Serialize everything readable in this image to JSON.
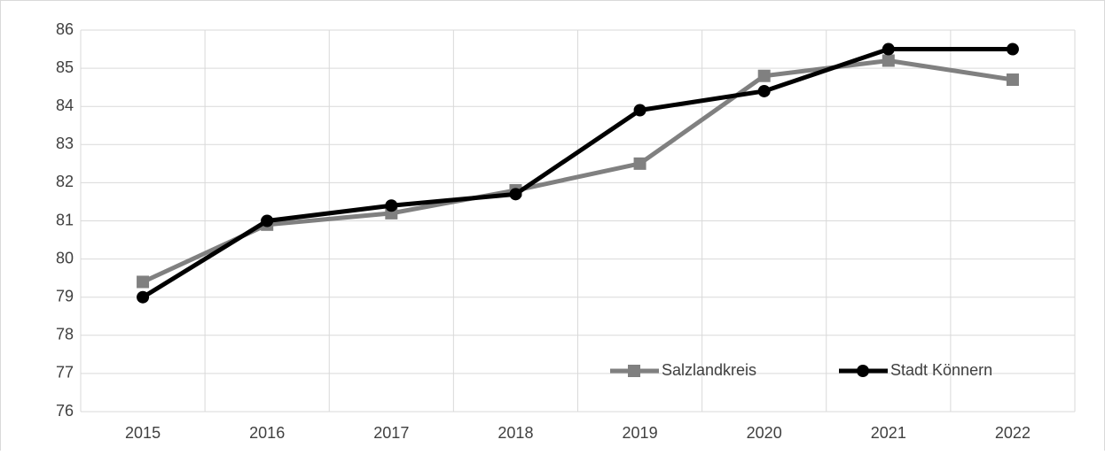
{
  "chart_data": {
    "type": "line",
    "categories": [
      "2015",
      "2016",
      "2017",
      "2018",
      "2019",
      "2020",
      "2021",
      "2022"
    ],
    "series": [
      {
        "name": "Salzlandkreis",
        "color": "#808080",
        "marker": "square",
        "values": [
          79.4,
          80.9,
          81.2,
          81.8,
          82.5,
          84.8,
          85.2,
          84.7
        ]
      },
      {
        "name": "Stadt Könnern",
        "color": "#000000",
        "marker": "circle",
        "values": [
          79.0,
          81.0,
          81.4,
          81.7,
          83.9,
          84.4,
          85.5,
          85.5
        ]
      }
    ],
    "ylim": [
      76,
      86
    ],
    "yticks": [
      76,
      77,
      78,
      79,
      80,
      81,
      82,
      83,
      84,
      85,
      86
    ],
    "grid": true,
    "legend": "lower right"
  }
}
